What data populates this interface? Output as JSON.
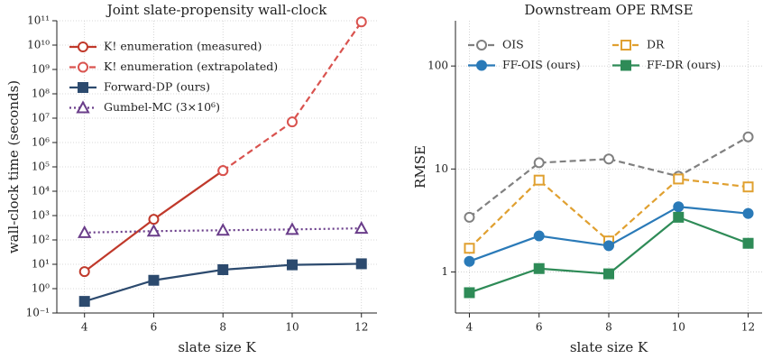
{
  "chart_data": [
    {
      "type": "line",
      "title": "Joint slate-propensity wall-clock",
      "xlabel": "slate size K",
      "ylabel": "wall-clock time (seconds)",
      "x": [
        4,
        6,
        8,
        10,
        12
      ],
      "xlim": [
        3.2,
        12.45
      ],
      "xticks": [
        4,
        6,
        8,
        10,
        12
      ],
      "ylog": true,
      "ylim": [
        0.1,
        100000000000
      ],
      "yticks": [
        {
          "value": 0.1,
          "label": "10⁻¹"
        },
        {
          "value": 1,
          "label": "10⁰"
        },
        {
          "value": 10,
          "label": "10¹"
        },
        {
          "value": 100,
          "label": "10²"
        },
        {
          "value": 1000,
          "label": "10³"
        },
        {
          "value": 10000,
          "label": "10⁴"
        },
        {
          "value": 100000,
          "label": "10⁵"
        },
        {
          "value": 1000000,
          "label": "10⁶"
        },
        {
          "value": 10000000,
          "label": "10⁷"
        },
        {
          "value": 100000000,
          "label": "10⁸"
        },
        {
          "value": 1000000000,
          "label": "10⁹"
        },
        {
          "value": 10000000000,
          "label": "10¹⁰"
        },
        {
          "value": 100000000000,
          "label": "10¹¹"
        }
      ],
      "grid": true,
      "legend": "upper left",
      "legend_columns": 1,
      "series": [
        {
          "name": "K! enumeration (measured)",
          "color": "#c0392b",
          "linestyle": "solid",
          "marker": "circle",
          "filled": false,
          "values": [
            5,
            700,
            70000,
            null,
            null
          ]
        },
        {
          "name": "K! enumeration (extrapolated)",
          "color": "#d9534f",
          "linestyle": "dashed",
          "marker": "circle",
          "filled": false,
          "values": [
            null,
            null,
            70000,
            7000000,
            90000000000
          ]
        },
        {
          "name": "Forward-DP (ours)",
          "color": "#2c4a6e",
          "linestyle": "solid",
          "marker": "square",
          "filled": true,
          "values": [
            0.3,
            2.2,
            6,
            9.5,
            10.5
          ]
        },
        {
          "name": "Gumbel-MC (3×10⁶)",
          "color": "#6a3d8a",
          "linestyle": "dotted",
          "marker": "triangle",
          "filled": false,
          "values": [
            200,
            230,
            250,
            270,
            300
          ]
        }
      ]
    },
    {
      "type": "line",
      "title": "Downstream OPE RMSE",
      "xlabel": "slate size K",
      "ylabel": "RMSE",
      "x": [
        4,
        6,
        8,
        10,
        12
      ],
      "xlim": [
        3.6,
        12.4
      ],
      "xticks": [
        4,
        6,
        8,
        10,
        12
      ],
      "ylog": true,
      "ylim": [
        0.4,
        275
      ],
      "yticks": [
        1,
        10,
        100
      ],
      "grid": true,
      "legend": "upper left",
      "legend_columns": 2,
      "series": [
        {
          "name": "OIS",
          "color": "#808080",
          "linestyle": "dashed",
          "marker": "circle",
          "filled": false,
          "values": [
            3.4,
            11.5,
            12.5,
            8.5,
            20.5
          ]
        },
        {
          "name": "DR",
          "color": "#e0a030",
          "linestyle": "dashed",
          "marker": "square",
          "filled": false,
          "values": [
            1.7,
            7.8,
            2.0,
            8.0,
            6.7
          ]
        },
        {
          "name": "FF-OIS (ours)",
          "color": "#2a7ab8",
          "linestyle": "solid",
          "marker": "circle",
          "filled": true,
          "values": [
            1.27,
            2.24,
            1.8,
            4.3,
            3.7
          ]
        },
        {
          "name": "FF-DR (ours)",
          "color": "#2e8b57",
          "linestyle": "solid",
          "marker": "square",
          "filled": true,
          "values": [
            0.63,
            1.08,
            0.96,
            3.4,
            1.9
          ]
        }
      ]
    }
  ]
}
